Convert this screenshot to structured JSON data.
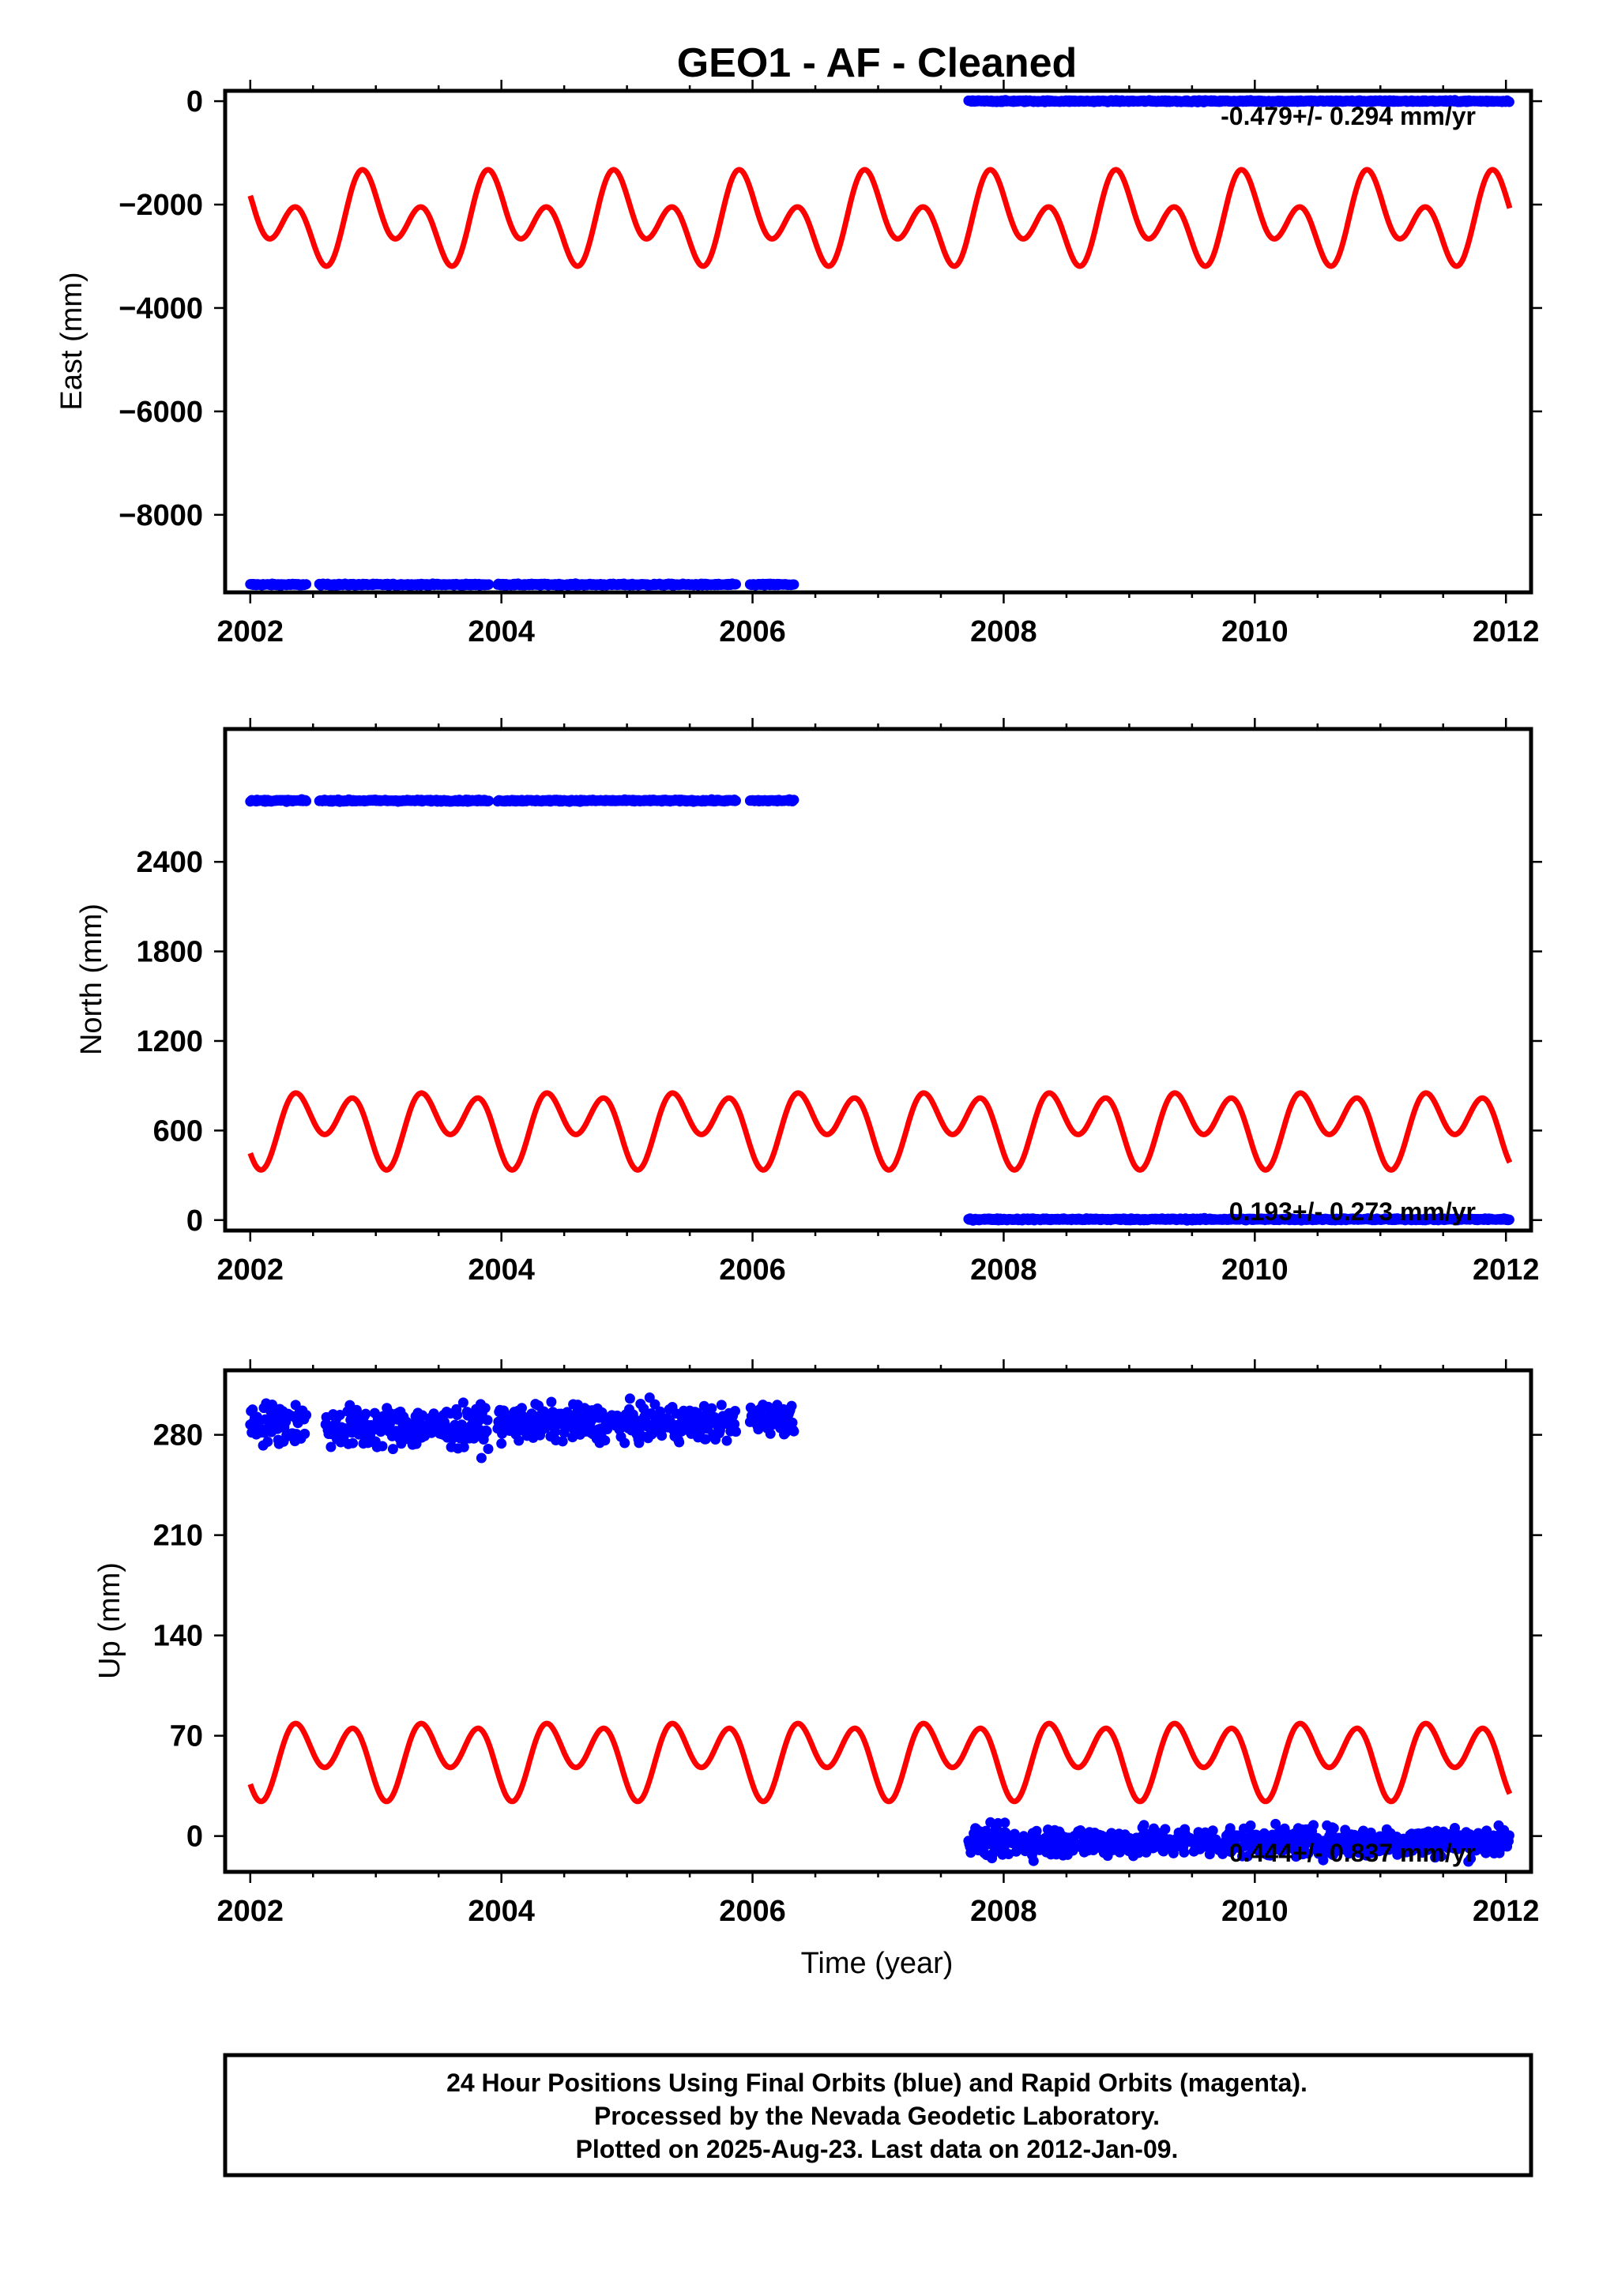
{
  "title": "GEO1  - AF - Cleaned",
  "xlabel": "Time (year)",
  "footer": {
    "line1": "24 Hour Positions Using Final Orbits (blue) and Rapid Orbits (magenta).",
    "line2": "Processed by the Nevada Geodetic Laboratory.",
    "line3": "Plotted on 2025-Aug-23. Last data on 2012-Jan-09."
  },
  "colors": {
    "data": "#0000ff",
    "model": "#ff0000",
    "frame": "#000000"
  },
  "chart_data": [
    {
      "type": "scatter",
      "panel": "east",
      "ylabel": "East (mm)",
      "xlim": [
        2001.8,
        2012.2
      ],
      "ylim": [
        -9500,
        200
      ],
      "xticks": [
        2002,
        2004,
        2006,
        2008,
        2010,
        2012
      ],
      "yticks": [
        0,
        -2000,
        -4000,
        -6000,
        -8000
      ],
      "rate_label": "-0.479+/- 0.294 mm/yr",
      "data_segments": [
        {
          "x_start": 2002.0,
          "x_end": 2002.45,
          "y": -9350,
          "scatter": 8
        },
        {
          "x_start": 2002.55,
          "x_end": 2003.9,
          "y": -9350,
          "scatter": 8
        },
        {
          "x_start": 2003.97,
          "x_end": 2005.87,
          "y": -9350,
          "scatter": 8
        },
        {
          "x_start": 2005.98,
          "x_end": 2006.33,
          "y": -9350,
          "scatter": 8
        },
        {
          "x_start": 2007.72,
          "x_end": 2012.03,
          "y": 0,
          "scatter": 8
        }
      ],
      "model": {
        "offset": -2300,
        "annual_amp": 450,
        "semiannual_amp": 600,
        "x_start": 2002.0,
        "x_end": 2012.03,
        "phase_annual": 1.7,
        "phase_semi": 3.1
      }
    },
    {
      "type": "scatter",
      "panel": "north",
      "ylabel": "North (mm)",
      "xlim": [
        2001.8,
        2012.2
      ],
      "ylim": [
        -70,
        3290
      ],
      "xticks": [
        2002,
        2004,
        2006,
        2008,
        2010,
        2012
      ],
      "yticks": [
        0,
        600,
        1200,
        1800,
        2400
      ],
      "rate_label": "0.193+/- 0.273 mm/yr",
      "data_segments": [
        {
          "x_start": 2002.0,
          "x_end": 2002.45,
          "y": 2810,
          "scatter": 3
        },
        {
          "x_start": 2002.55,
          "x_end": 2003.9,
          "y": 2810,
          "scatter": 3
        },
        {
          "x_start": 2003.97,
          "x_end": 2005.87,
          "y": 2810,
          "scatter": 3
        },
        {
          "x_start": 2005.98,
          "x_end": 2006.33,
          "y": 2810,
          "scatter": 3
        },
        {
          "x_start": 2007.72,
          "x_end": 2012.03,
          "y": 5,
          "scatter": 3
        }
      ],
      "model": {
        "offset": 640,
        "annual_amp": 120,
        "semiannual_amp": 185,
        "x_start": 2002.0,
        "x_end": 2012.03,
        "phase_annual": 4.3,
        "phase_semi": 3.6
      }
    },
    {
      "type": "scatter",
      "panel": "up",
      "ylabel": "Up (mm)",
      "xlim": [
        2001.8,
        2012.2
      ],
      "ylim": [
        -25,
        325
      ],
      "xticks": [
        2002,
        2004,
        2006,
        2008,
        2010,
        2012
      ],
      "yticks": [
        0,
        70,
        140,
        210,
        280
      ],
      "rate_label": "0.444+/- 0.837 mm/yr",
      "data_segments": [
        {
          "x_start": 2002.0,
          "x_end": 2002.45,
          "y": 288,
          "scatter": 7
        },
        {
          "x_start": 2002.6,
          "x_end": 2003.9,
          "y": 285,
          "scatter": 7
        },
        {
          "x_start": 2003.97,
          "x_end": 2005.87,
          "y": 288,
          "scatter": 6
        },
        {
          "x_start": 2005.98,
          "x_end": 2006.33,
          "y": 292,
          "scatter": 5
        },
        {
          "x_start": 2007.72,
          "x_end": 2012.03,
          "y": -4,
          "scatter": 5
        }
      ],
      "model": {
        "offset": 56,
        "annual_amp": 12,
        "semiannual_amp": 20,
        "x_start": 2002.0,
        "x_end": 2012.03,
        "phase_annual": 4.3,
        "phase_semi": 3.6
      }
    }
  ]
}
